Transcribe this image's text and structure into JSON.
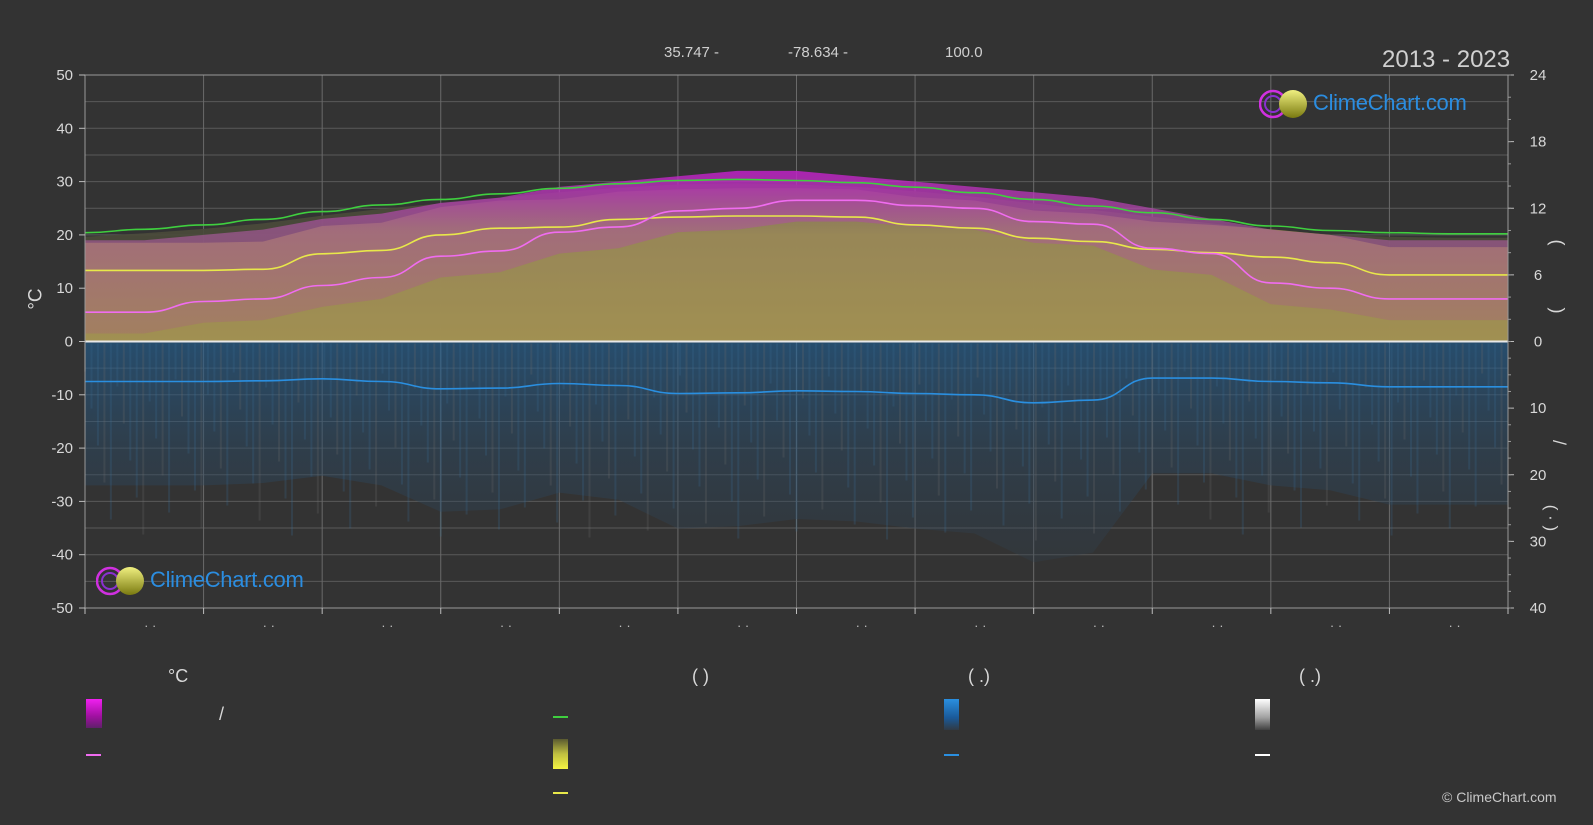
{
  "header": {
    "lat": "35.747 -",
    "lon": "-78.634 -",
    "elev": "100.0",
    "years": "2013 - 2023"
  },
  "brand": {
    "name": "ClimeChart.com",
    "copyright": "© ClimeChart.com"
  },
  "axes": {
    "left_unit": "°C",
    "right_top_bracket_open": "(",
    "right_top_bracket_close": ")",
    "right_bottom_slash": "/",
    "right_bottom_bracket": "( · )"
  },
  "legend": {
    "col1_title": "°C",
    "col1_slash": "/",
    "col2_title": "(          )",
    "col3_title": "(   .)",
    "col4_title": "(   .)"
  },
  "colors": {
    "background": "#333333",
    "daylight_green": "#3fcf3f",
    "sunshine_yellow": "#e8e84a",
    "temperature_pink": "#f06cf0",
    "precip_blue": "#2a8fe0",
    "snow_white": "#ffffff",
    "temp_band_magenta": "#d61cd6",
    "sun_band_olive": "#a0a033"
  },
  "chart_data": {
    "type": "area",
    "months_ticks": [
      "· ·",
      "· ·",
      "· ·",
      "· ·",
      "· ·",
      "· ·",
      "· ·",
      "· ·",
      "· ·",
      "· ·",
      "· ·",
      "· ·"
    ],
    "y_left": {
      "min": -50,
      "max": 50,
      "ticks": [
        50,
        40,
        30,
        20,
        10,
        0,
        -10,
        -20,
        -30,
        -40,
        -50
      ],
      "label": "°C"
    },
    "y_right_top": {
      "min": 0,
      "max": 24,
      "ticks": [
        24,
        18,
        12,
        6,
        0
      ]
    },
    "y_right_bottom": {
      "min": 0,
      "max": 40,
      "ticks": [
        0,
        10,
        20,
        30,
        40
      ]
    },
    "x": [
      0,
      0.5,
      1,
      1.5,
      2,
      2.5,
      3,
      3.5,
      4,
      4.5,
      5,
      5.5,
      6,
      6.5,
      7,
      7.5,
      8,
      8.5,
      9,
      9.5,
      10,
      10.5,
      11,
      11.5,
      12
    ],
    "series": [
      {
        "key": "daylight",
        "axis": "right_top",
        "color": "#3fcf3f",
        "values": [
          9.8,
          10.1,
          10.5,
          11.0,
          11.7,
          12.3,
          12.8,
          13.3,
          13.8,
          14.2,
          14.5,
          14.6,
          14.5,
          14.3,
          13.9,
          13.4,
          12.8,
          12.2,
          11.6,
          11.0,
          10.4,
          10.0,
          9.8,
          9.7,
          9.7
        ]
      },
      {
        "key": "sunshine",
        "axis": "right_top",
        "color": "#e8e84a",
        "values": [
          6.4,
          6.4,
          6.4,
          6.5,
          7.9,
          8.2,
          9.6,
          10.2,
          10.3,
          11.0,
          11.2,
          11.3,
          11.3,
          11.2,
          10.5,
          10.2,
          9.3,
          9.0,
          8.3,
          8.0,
          7.6,
          7.1,
          6.0,
          6.0,
          6.0
        ]
      },
      {
        "key": "temp_avg",
        "axis": "left",
        "color": "#f06cf0",
        "values": [
          5.5,
          5.5,
          7.5,
          8.0,
          10.5,
          12.0,
          16.0,
          17.0,
          20.5,
          21.5,
          24.5,
          25.0,
          26.5,
          26.5,
          25.5,
          25.0,
          22.5,
          22.0,
          17.5,
          16.5,
          11.0,
          10.0,
          8.0,
          8.0,
          8.0
        ]
      },
      {
        "key": "precip_avg",
        "axis": "right_bottom",
        "color": "#2a8fe0",
        "values": [
          6.0,
          6.0,
          6.0,
          5.9,
          5.6,
          6.0,
          7.1,
          7.0,
          6.3,
          6.6,
          7.8,
          7.7,
          7.4,
          7.5,
          7.8,
          8.0,
          9.2,
          8.8,
          5.5,
          5.5,
          6.0,
          6.2,
          6.8,
          6.8,
          6.8
        ]
      }
    ],
    "temp_band": {
      "max": [
        19,
        19,
        20,
        21,
        23,
        24,
        26,
        27,
        29,
        30,
        31,
        32,
        32,
        31,
        30,
        29,
        28,
        27,
        25,
        23,
        21,
        20,
        19,
        19,
        19
      ],
      "min": [
        0,
        0,
        0,
        0,
        0,
        0,
        0,
        0,
        0,
        0,
        0,
        0,
        0,
        0,
        0,
        0,
        0,
        0,
        0,
        0,
        0,
        0,
        0,
        0,
        0
      ]
    },
    "grid": true
  }
}
